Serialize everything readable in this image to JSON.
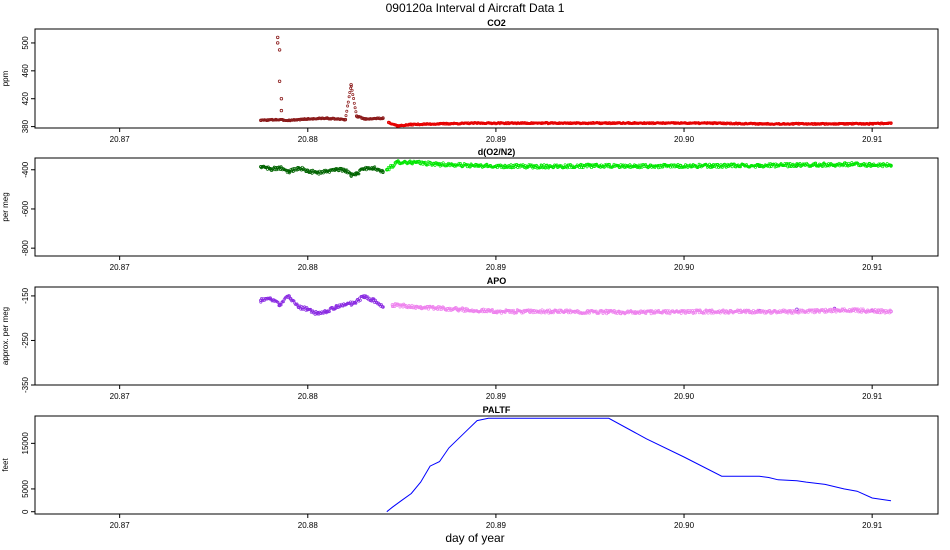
{
  "page": {
    "title": "090120a   Interval d Aircraft Data 1",
    "xlabel": "day of year"
  },
  "chart_data": [
    {
      "type": "scatter",
      "title": "CO2",
      "ylabel": "ppm",
      "xlim": [
        20.8655,
        20.9135
      ],
      "ylim": [
        378,
        520
      ],
      "x_ticks": [
        "20.87",
        "20.88",
        "20.89",
        "20.90",
        "20.91"
      ],
      "y_ticks": [
        "380",
        "420",
        "460",
        "500"
      ],
      "series": [
        {
          "color": "#8b1a1a",
          "x": [
            20.8775,
            20.8783,
            20.879,
            20.88,
            20.881,
            20.882,
            20.8823,
            20.8826,
            20.883,
            20.884
          ],
          "y": [
            389,
            390,
            389,
            391,
            392,
            390,
            440,
            395,
            391,
            392
          ]
        },
        {
          "color": "#8b1a1a",
          "x": [
            20.8784,
            20.8784,
            20.8785,
            20.8785,
            20.8786,
            20.8786
          ],
          "y": [
            508,
            500,
            490,
            445,
            420,
            403
          ]
        },
        {
          "color": "#e60000",
          "x": [
            20.8843,
            20.8848,
            20.8855,
            20.887,
            20.889,
            20.892,
            20.8955,
            20.8974,
            20.9015,
            20.904,
            20.907,
            20.91,
            20.911
          ],
          "y": [
            386,
            381,
            383,
            384,
            385,
            385,
            385,
            385,
            385,
            384,
            384,
            384,
            385
          ]
        }
      ]
    },
    {
      "type": "scatter",
      "title": "d(O2/N2)",
      "ylabel": "per meg",
      "xlim": [
        20.8655,
        20.9135
      ],
      "ylim": [
        -840,
        -340
      ],
      "x_ticks": [
        "20.87",
        "20.88",
        "20.89",
        "20.90",
        "20.91"
      ],
      "y_ticks": [
        "-400",
        "-600",
        "-800"
      ],
      "series": [
        {
          "color": "#006400",
          "x": [
            20.8775,
            20.878,
            20.8785,
            20.879,
            20.8795,
            20.88,
            20.8805,
            20.881,
            20.8815,
            20.882,
            20.8823,
            20.8826,
            20.883,
            20.8835,
            20.884
          ],
          "y": [
            -385,
            -395,
            -390,
            -410,
            -390,
            -405,
            -415,
            -410,
            -395,
            -402,
            -430,
            -420,
            -395,
            -390,
            -410
          ]
        },
        {
          "color": "#006400",
          "x": [
            20.9015,
            20.904,
            20.906,
            20.908,
            20.91,
            20.911
          ],
          "y": [
            -385,
            -382,
            -380,
            -378,
            -375,
            -380
          ]
        },
        {
          "color": "#00e600",
          "x": [
            20.8842,
            20.8848,
            20.8855,
            20.887,
            20.889,
            20.892,
            20.895,
            20.8974,
            20.9015,
            20.904,
            20.907,
            20.909,
            20.911
          ],
          "y": [
            -400,
            -360,
            -362,
            -372,
            -380,
            -383,
            -380,
            -382,
            -380,
            -378,
            -375,
            -372,
            -378
          ]
        }
      ]
    },
    {
      "type": "scatter",
      "title": "APO",
      "ylabel": "approx. per meg",
      "xlim": [
        20.8655,
        20.9135
      ],
      "ylim": [
        -350,
        -130
      ],
      "x_ticks": [
        "20.87",
        "20.88",
        "20.89",
        "20.90",
        "20.91"
      ],
      "y_ticks": [
        "-150",
        "-250",
        "-350"
      ],
      "series": [
        {
          "color": "#8a2be2",
          "x": [
            20.8775,
            20.878,
            20.8785,
            20.879,
            20.8795,
            20.88,
            20.8805,
            20.881,
            20.8815,
            20.882,
            20.8825,
            20.883,
            20.8835,
            20.884
          ],
          "y": [
            -160,
            -155,
            -170,
            -150,
            -175,
            -180,
            -190,
            -185,
            -175,
            -170,
            -165,
            -150,
            -160,
            -175
          ]
        },
        {
          "color": "#8a2be2",
          "x": [
            20.9015,
            20.904,
            20.906,
            20.908,
            20.91,
            20.911
          ],
          "y": [
            -185,
            -183,
            -180,
            -178,
            -183,
            -185
          ]
        },
        {
          "color": "#ee82ee",
          "x": [
            20.8845,
            20.886,
            20.888,
            20.89,
            20.893,
            20.896,
            20.8974,
            20.9015,
            20.904,
            20.907,
            20.909,
            20.911
          ],
          "y": [
            -170,
            -175,
            -180,
            -185,
            -185,
            -186,
            -187,
            -185,
            -186,
            -184,
            -182,
            -185
          ]
        }
      ]
    },
    {
      "type": "line",
      "title": "PALTF",
      "ylabel": "feet",
      "xlim": [
        20.8655,
        20.9135
      ],
      "ylim": [
        -500,
        21000
      ],
      "x_ticks": [
        "20.87",
        "20.88",
        "20.89",
        "20.90",
        "20.91"
      ],
      "y_ticks": [
        "0",
        "5000",
        "15000"
      ],
      "series": [
        {
          "color": "#0000ff",
          "x": [
            20.8842,
            20.8845,
            20.885,
            20.8855,
            20.886,
            20.8865,
            20.887,
            20.8875,
            20.888,
            20.8885,
            20.889,
            20.8896,
            20.8905,
            20.8925,
            20.896,
            20.898,
            20.9,
            20.902,
            20.904,
            20.9045,
            20.905,
            20.906,
            20.9065,
            20.9075,
            20.9085,
            20.9092,
            20.91,
            20.911
          ],
          "y": [
            0,
            1000,
            2500,
            4000,
            6500,
            10000,
            11000,
            14000,
            16000,
            18000,
            20000,
            20500,
            20500,
            20500,
            20500,
            16000,
            12000,
            7800,
            7800,
            7500,
            7000,
            6800,
            6500,
            6000,
            5000,
            4500,
            3000,
            2400
          ]
        }
      ]
    }
  ]
}
